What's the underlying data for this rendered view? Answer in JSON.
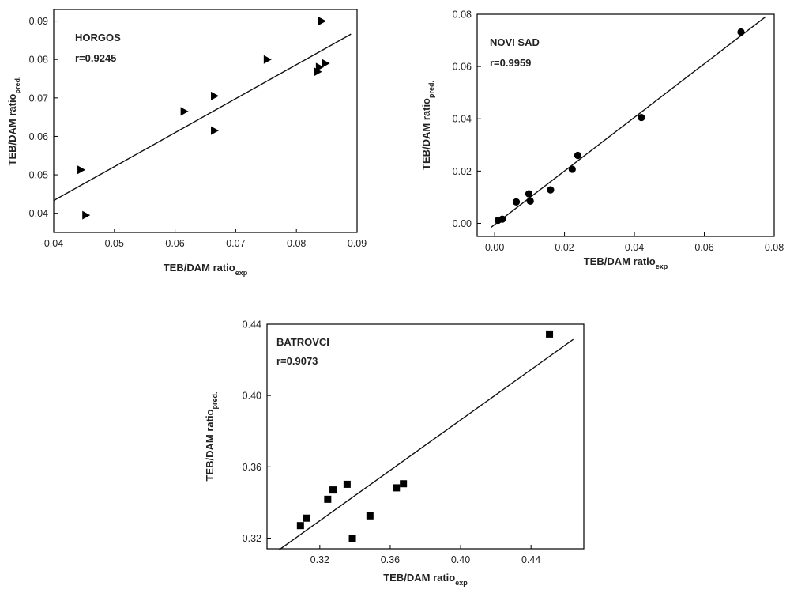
{
  "chart_data": [
    {
      "type": "scatter",
      "title": "HORGOS",
      "annotation": "r=0.9245",
      "xlabel": "TEB/DAM ratio",
      "xlabel_sub": "exp",
      "ylabel": "TEB/DAM ratio",
      "ylabel_sub": "pred.",
      "xlim": [
        0.04,
        0.09
      ],
      "ylim": [
        0.035,
        0.093
      ],
      "xticks": [
        0.04,
        0.05,
        0.06,
        0.07,
        0.08,
        0.09
      ],
      "xtick_labels": [
        "0.04",
        "0.05",
        "0.06",
        "0.07",
        "0.08",
        "0.09"
      ],
      "yticks": [
        0.04,
        0.05,
        0.06,
        0.07,
        0.08,
        0.09
      ],
      "ytick_labels": [
        "0.04",
        "0.05",
        "0.06",
        "0.07",
        "0.08",
        "0.09"
      ],
      "marker": "triangle-right",
      "points": [
        {
          "x": 0.0445,
          "y": 0.0513
        },
        {
          "x": 0.0453,
          "y": 0.0395
        },
        {
          "x": 0.0615,
          "y": 0.0665
        },
        {
          "x": 0.0665,
          "y": 0.0705
        },
        {
          "x": 0.0665,
          "y": 0.0615
        },
        {
          "x": 0.0752,
          "y": 0.08
        },
        {
          "x": 0.0835,
          "y": 0.0768
        },
        {
          "x": 0.0838,
          "y": 0.078
        },
        {
          "x": 0.0848,
          "y": 0.079
        },
        {
          "x": 0.0842,
          "y": 0.09
        }
      ],
      "fit_line": {
        "x": [
          0.04,
          0.089
        ],
        "y": [
          0.0433,
          0.0866
        ]
      }
    },
    {
      "type": "scatter",
      "title": "NOVI SAD",
      "annotation": "r=0.9959",
      "xlabel": "TEB/DAM ratio",
      "xlabel_sub": "exp",
      "ylabel": "TEB/DAM ratio",
      "ylabel_sub": "pred.",
      "xlim": [
        -0.005,
        0.08
      ],
      "ylim": [
        -0.005,
        0.08
      ],
      "xticks": [
        0.0,
        0.02,
        0.04,
        0.06,
        0.08
      ],
      "xtick_labels": [
        "0.00",
        "0.02",
        "0.04",
        "0.06",
        "0.08"
      ],
      "yticks": [
        0.0,
        0.02,
        0.04,
        0.06,
        0.08
      ],
      "ytick_labels": [
        "0.00",
        "0.02",
        "0.04",
        "0.06",
        "0.08"
      ],
      "marker": "circle",
      "points": [
        {
          "x": 0.001,
          "y": 0.0012
        },
        {
          "x": 0.0022,
          "y": 0.0016
        },
        {
          "x": 0.0062,
          "y": 0.0082
        },
        {
          "x": 0.0098,
          "y": 0.0113
        },
        {
          "x": 0.0102,
          "y": 0.0085
        },
        {
          "x": 0.016,
          "y": 0.0128
        },
        {
          "x": 0.0222,
          "y": 0.0207
        },
        {
          "x": 0.0238,
          "y": 0.026
        },
        {
          "x": 0.042,
          "y": 0.0405
        },
        {
          "x": 0.0705,
          "y": 0.0732
        }
      ],
      "fit_line": {
        "x": [
          -0.001,
          0.0775
        ],
        "y": [
          -0.0015,
          0.079
        ]
      }
    },
    {
      "type": "scatter",
      "title": "BATROVCI",
      "annotation": "r=0.9073",
      "xlabel": "TEB/DAM ratio",
      "xlabel_sub": "exp",
      "ylabel": "TEB/DAM ratio",
      "ylabel_sub": "pred.",
      "xlim": [
        0.29,
        0.47
      ],
      "ylim": [
        0.314,
        0.44
      ],
      "xticks": [
        0.32,
        0.36,
        0.4,
        0.44
      ],
      "xtick_labels": [
        "0.32",
        "0.36",
        "0.40",
        "0.44"
      ],
      "yticks": [
        0.32,
        0.36,
        0.4,
        0.44
      ],
      "ytick_labels": [
        "0.32",
        "0.36",
        "0.40",
        "0.44"
      ],
      "marker": "square",
      "points": [
        {
          "x": 0.309,
          "y": 0.327
        },
        {
          "x": 0.3125,
          "y": 0.3312
        },
        {
          "x": 0.3245,
          "y": 0.3418
        },
        {
          "x": 0.3275,
          "y": 0.347
        },
        {
          "x": 0.3355,
          "y": 0.3502
        },
        {
          "x": 0.3385,
          "y": 0.3198
        },
        {
          "x": 0.3485,
          "y": 0.3325
        },
        {
          "x": 0.3635,
          "y": 0.3482
        },
        {
          "x": 0.3675,
          "y": 0.3505
        },
        {
          "x": 0.4505,
          "y": 0.4345
        }
      ],
      "fit_line": {
        "x": [
          0.297,
          0.464
        ],
        "y": [
          0.3135,
          0.4315
        ]
      }
    }
  ]
}
